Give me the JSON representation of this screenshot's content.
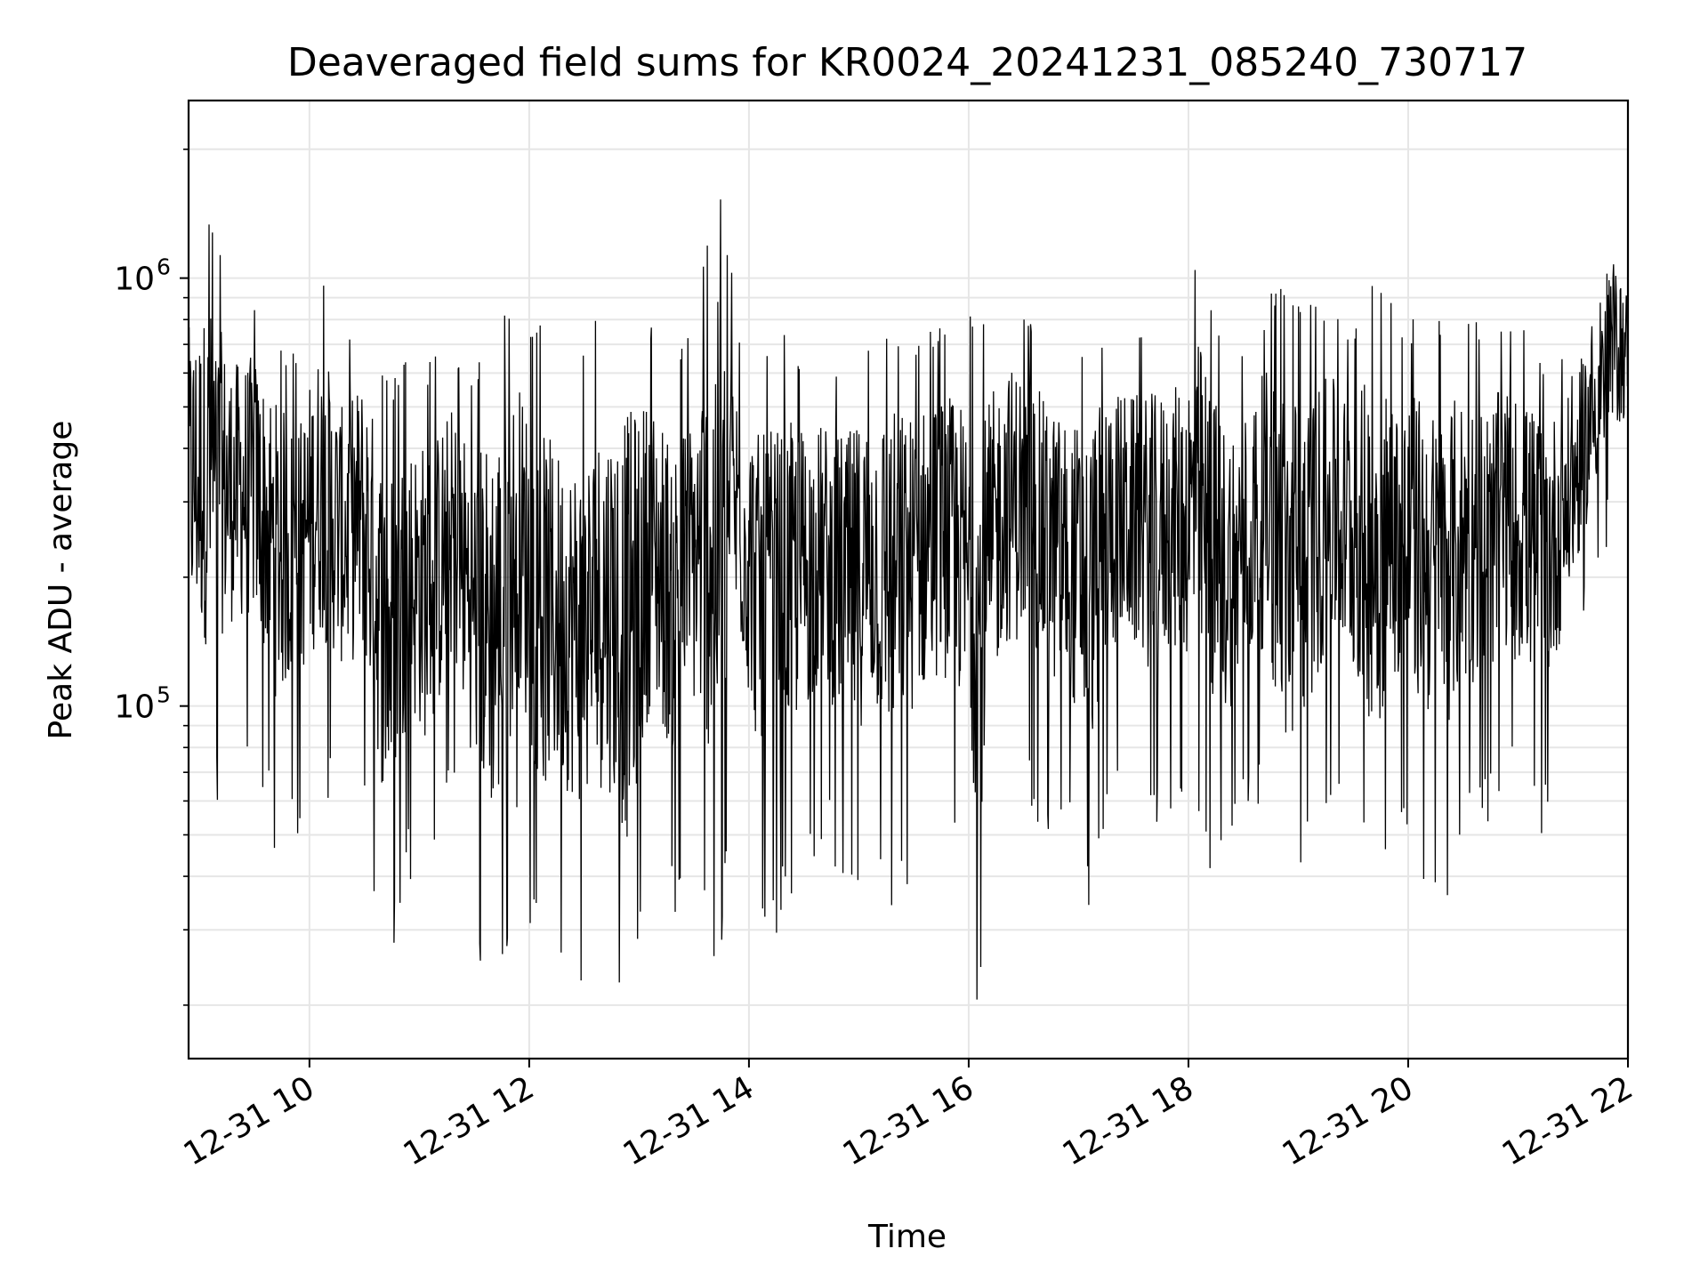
{
  "chart_data": {
    "type": "line",
    "title": "Deaveraged field sums for KR0024_20241231_085240_730717",
    "xlabel": "Time",
    "ylabel": "Peak ADU - average",
    "yscale": "log",
    "ylim": [
      15000,
      2600000
    ],
    "xlim": [
      "2024-12-31 08:54",
      "2024-12-31 22:00"
    ],
    "grid": true,
    "legend": "none",
    "x_ticks": [
      {
        "value": "2024-12-31 10:00",
        "label": "12-31 10"
      },
      {
        "value": "2024-12-31 12:00",
        "label": "12-31 12"
      },
      {
        "value": "2024-12-31 14:00",
        "label": "12-31 14"
      },
      {
        "value": "2024-12-31 16:00",
        "label": "12-31 16"
      },
      {
        "value": "2024-12-31 18:00",
        "label": "12-31 18"
      },
      {
        "value": "2024-12-31 20:00",
        "label": "12-31 20"
      },
      {
        "value": "2024-12-31 22:00",
        "label": "12-31 22"
      }
    ],
    "y_ticks": [
      {
        "value": 100000,
        "label": "10",
        "exp": "5"
      },
      {
        "value": 1000000,
        "label": "10",
        "exp": "6"
      }
    ],
    "series": [
      {
        "color": "#000000",
        "x": [
          "2024-12-31 08:54",
          "2024-12-31 09:06",
          "2024-12-31 09:18",
          "2024-12-31 09:30",
          "2024-12-31 09:42",
          "2024-12-31 09:54",
          "2024-12-31 10:06",
          "2024-12-31 10:18",
          "2024-12-31 10:30",
          "2024-12-31 10:42",
          "2024-12-31 10:54",
          "2024-12-31 11:06",
          "2024-12-31 11:18",
          "2024-12-31 11:30",
          "2024-12-31 11:42",
          "2024-12-31 11:54",
          "2024-12-31 12:06",
          "2024-12-31 12:18",
          "2024-12-31 12:30",
          "2024-12-31 12:42",
          "2024-12-31 12:54",
          "2024-12-31 13:06",
          "2024-12-31 13:18",
          "2024-12-31 13:30",
          "2024-12-31 13:42",
          "2024-12-31 13:54",
          "2024-12-31 14:06",
          "2024-12-31 14:18",
          "2024-12-31 14:30",
          "2024-12-31 14:42",
          "2024-12-31 14:54",
          "2024-12-31 15:06",
          "2024-12-31 15:18",
          "2024-12-31 15:30",
          "2024-12-31 15:42",
          "2024-12-31 15:54",
          "2024-12-31 16:06",
          "2024-12-31 16:18",
          "2024-12-31 16:30",
          "2024-12-31 16:42",
          "2024-12-31 16:54",
          "2024-12-31 17:06",
          "2024-12-31 17:18",
          "2024-12-31 17:30",
          "2024-12-31 17:42",
          "2024-12-31 17:54",
          "2024-12-31 18:06",
          "2024-12-31 18:18",
          "2024-12-31 18:30",
          "2024-12-31 18:42",
          "2024-12-31 18:54",
          "2024-12-31 19:06",
          "2024-12-31 19:18",
          "2024-12-31 19:30",
          "2024-12-31 19:42",
          "2024-12-31 19:54",
          "2024-12-31 20:06",
          "2024-12-31 20:18",
          "2024-12-31 20:30",
          "2024-12-31 20:42",
          "2024-12-31 20:54",
          "2024-12-31 21:06",
          "2024-12-31 21:18",
          "2024-12-31 21:30",
          "2024-12-31 21:42",
          "2024-12-31 21:54",
          "2024-12-31 22:00"
        ],
        "y_max": [
          1200000,
          1500000,
          900000,
          950000,
          800000,
          650000,
          1100000,
          700000,
          900000,
          600000,
          650000,
          650000,
          700000,
          650000,
          900000,
          900000,
          800000,
          650000,
          700000,
          900000,
          1000000,
          850000,
          700000,
          750000,
          2100000,
          800000,
          700000,
          750000,
          700000,
          650000,
          700000,
          800000,
          850000,
          750000,
          800000,
          800000,
          850000,
          900000,
          950000,
          750000,
          700000,
          750000,
          800000,
          750000,
          800000,
          800000,
          1200000,
          750000,
          700000,
          900000,
          1000000,
          900000,
          850000,
          800000,
          1100000,
          800000,
          850000,
          800000,
          850000,
          750000,
          800000,
          750000,
          700000,
          650000,
          900000,
          1200000,
          1000000
        ],
        "y_min": [
          60000,
          50000,
          70000,
          70000,
          42000,
          50000,
          60000,
          55000,
          55000,
          20000,
          40000,
          32000,
          60000,
          28000,
          16500,
          45000,
          22000,
          25000,
          20000,
          23000,
          14500,
          40000,
          30000,
          40000,
          19500,
          65000,
          28000,
          30000,
          40000,
          50000,
          30000,
          40000,
          30000,
          40000,
          50000,
          45000,
          18000,
          60000,
          60000,
          50000,
          45000,
          30000,
          60000,
          60000,
          50000,
          60000,
          45000,
          36000,
          50000,
          60000,
          25000,
          40000,
          60000,
          50000,
          30000,
          50000,
          40000,
          32000,
          45000,
          50000,
          60000,
          50000,
          50000,
          100000,
          180000,
          250000,
          280000
        ]
      }
    ]
  }
}
